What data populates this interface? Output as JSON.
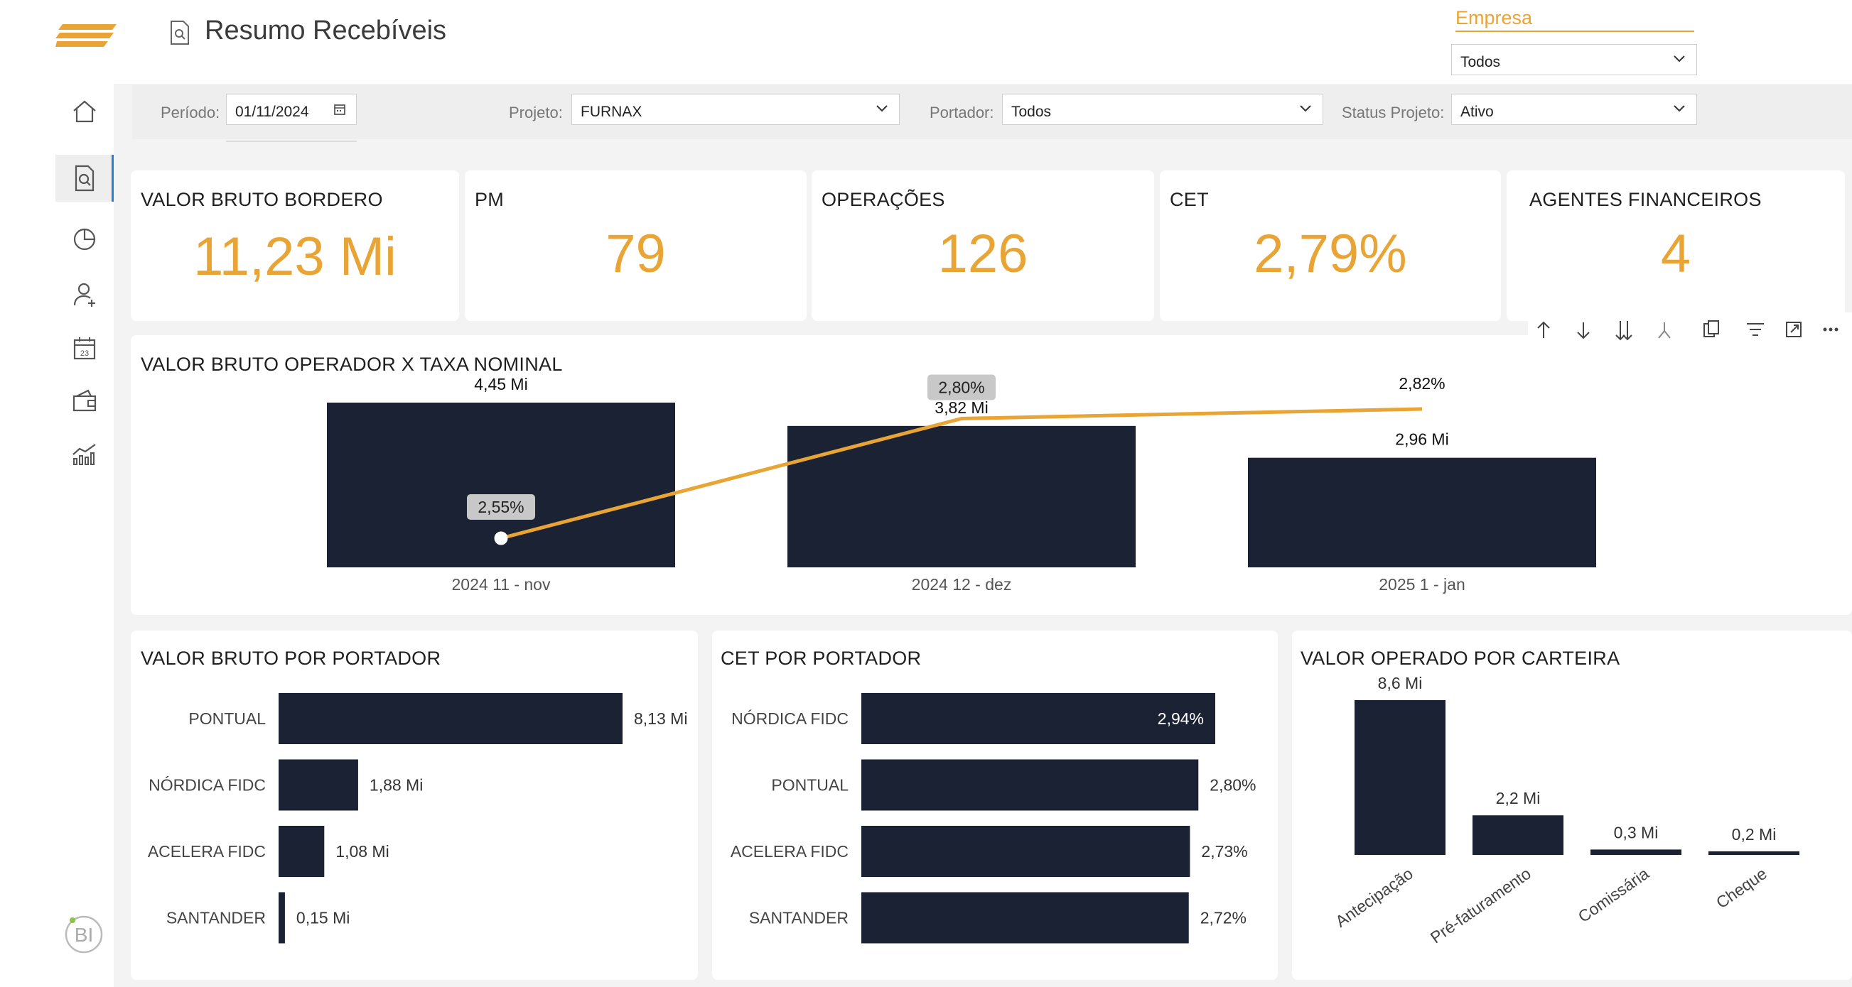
{
  "header": {
    "title": "Resumo Recebíveis"
  },
  "empresa": {
    "label": "Empresa",
    "value": "Todos"
  },
  "filters": {
    "periodo": {
      "label": "Período:",
      "value": "01/11/2024"
    },
    "projeto": {
      "label": "Projeto:",
      "value": "FURNAX"
    },
    "portador": {
      "label": "Portador:",
      "value": "Todos"
    },
    "status": {
      "label": "Status Projeto:",
      "value": "Ativo"
    }
  },
  "sidebar": {
    "icons": [
      "home-icon",
      "report-search-icon",
      "pie-chart-icon",
      "add-user-icon",
      "calendar-icon",
      "wallet-icon",
      "bar-line-chart-icon"
    ],
    "calendar_day": "23",
    "bi_badge": "BI"
  },
  "kpis": [
    {
      "title": "VALOR BRUTO BORDERO",
      "value": "11,23 Mi"
    },
    {
      "title": "PM",
      "value": "79"
    },
    {
      "title": "OPERAÇÕES",
      "value": "126"
    },
    {
      "title": "CET",
      "value": "2,79%"
    },
    {
      "title": "AGENTES FINANCEIROS",
      "value": "4"
    }
  ],
  "toolbar": {
    "icons": [
      "arrow-up-icon",
      "arrow-down-icon",
      "double-arrow-down-icon",
      "fork-icon",
      "copy-icon",
      "filter-icon",
      "focus-mode-icon",
      "more-options-icon"
    ]
  },
  "colors": {
    "accent": "#e8a535",
    "bar": "#1b2233",
    "label_bg": "#c8c8c8"
  },
  "chart_data": [
    {
      "type": "bar",
      "title": "VALOR BRUTO OPERADOR X TAXA NOMINAL",
      "categories": [
        "2024 11 - nov",
        "2024 12 - dez",
        "2025 1 - jan"
      ],
      "series": [
        {
          "values": [
            4.45,
            3.82,
            2.96
          ],
          "labels": [
            "4,45 Mi",
            "3,82 Mi",
            "2,96 Mi"
          ]
        },
        {
          "values": [
            2.55,
            2.8,
            2.82
          ],
          "labels": [
            "2,55%",
            "2,80%",
            "2,82%"
          ]
        }
      ]
    },
    {
      "type": "bar",
      "title": "VALOR BRUTO POR PORTADOR",
      "categories": [
        "PONTUAL",
        "NÓRDICA FIDC",
        "ACELERA FIDC",
        "SANTANDER"
      ],
      "values": [
        8.13,
        1.88,
        1.08,
        0.15
      ],
      "labels": [
        "8,13 Mi",
        "1,88 Mi",
        "1,08 Mi",
        "0,15 Mi"
      ]
    },
    {
      "type": "bar",
      "title": "CET POR PORTADOR",
      "categories": [
        "NÓRDICA FIDC",
        "PONTUAL",
        "ACELERA FIDC",
        "SANTANDER"
      ],
      "values": [
        2.94,
        2.8,
        2.73,
        2.72
      ],
      "labels": [
        "2,94%",
        "2,80%",
        "2,73%",
        "2,72%"
      ]
    },
    {
      "type": "bar",
      "title": "VALOR OPERADO POR CARTEIRA",
      "categories": [
        "Antecipação",
        "Pré-faturamento",
        "Comissária",
        "Cheque"
      ],
      "values": [
        8.6,
        2.2,
        0.3,
        0.2
      ],
      "labels": [
        "8,6 Mi",
        "2,2 Mi",
        "0,3 Mi",
        "0,2 Mi"
      ]
    }
  ]
}
